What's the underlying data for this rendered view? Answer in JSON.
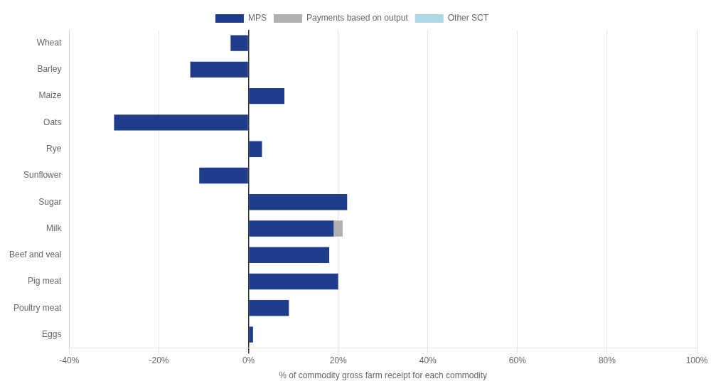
{
  "chart_data": {
    "type": "bar",
    "orientation": "horizontal",
    "stacked": true,
    "categories": [
      "Wheat",
      "Barley",
      "Maize",
      "Oats",
      "Rye",
      "Sunflower",
      "Sugar",
      "Milk",
      "Beef and veal",
      "Pig meat",
      "Poultry meat",
      "Eggs"
    ],
    "series": [
      {
        "name": "MPS",
        "color": "#1F3D8A",
        "values": [
          -4,
          -13,
          8,
          -30,
          3,
          -11,
          22,
          19,
          18,
          20,
          9,
          1
        ]
      },
      {
        "name": "Payments based on output",
        "color": "#B0B0B0",
        "values": [
          0,
          0,
          0,
          0,
          0,
          0,
          0,
          2,
          0,
          0,
          0,
          0
        ]
      },
      {
        "name": "Other SCT",
        "color": "#ADD8E6",
        "values": [
          0,
          0,
          0,
          0,
          0,
          0,
          0,
          0,
          0,
          0,
          0,
          0
        ]
      }
    ],
    "xlim": [
      -40,
      100
    ],
    "xticks": [
      {
        "value": -40,
        "label": "-40%"
      },
      {
        "value": -20,
        "label": "-20%"
      },
      {
        "value": 0,
        "label": "0%"
      },
      {
        "value": 20,
        "label": "20%"
      },
      {
        "value": 40,
        "label": "40%"
      },
      {
        "value": 60,
        "label": "60%"
      },
      {
        "value": 80,
        "label": "80%"
      },
      {
        "value": 100,
        "label": "100%"
      }
    ],
    "xlabel": "% of commodity gross farm receipt for each commodity",
    "grid": true,
    "legend": "top"
  }
}
